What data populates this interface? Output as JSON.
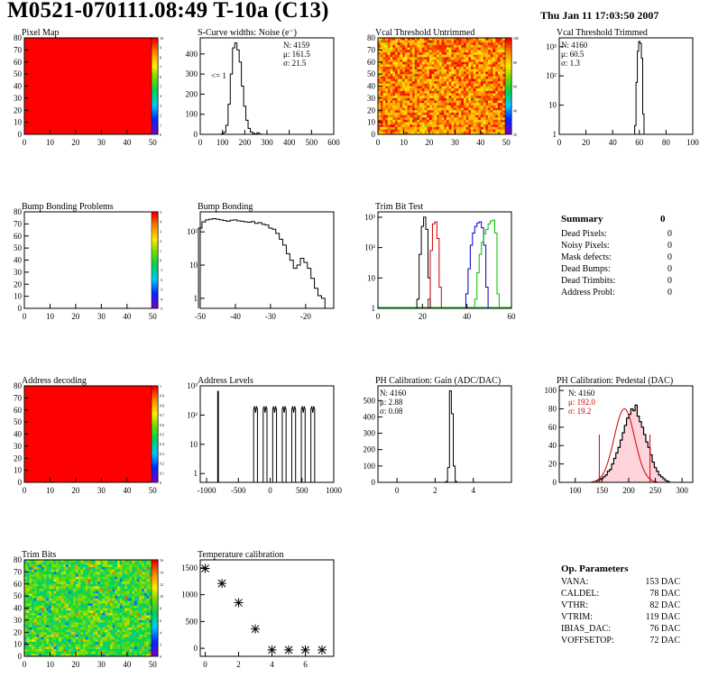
{
  "header": {
    "title": "M0521-070111.08:49 T-10a (C13)",
    "date": "Thu Jan 11 17:03:50 2007"
  },
  "panels": {
    "pixel_map": {
      "title": "Pixel Map",
      "xticks": [
        "0",
        "10",
        "20",
        "30",
        "40",
        "50"
      ],
      "yticks": [
        "0",
        "10",
        "20",
        "30",
        "40",
        "50",
        "60",
        "70",
        "80"
      ],
      "zticks": [
        "0",
        "1",
        "2",
        "3",
        "4",
        "5",
        "6",
        "7",
        "8",
        "9",
        "10"
      ]
    },
    "scurve": {
      "title": "S-Curve widths: Noise (e⁻)",
      "stats": [
        "N: 4159",
        "μ: 161.5",
        "σ: 21.5"
      ],
      "annotation": "<= 1",
      "xticks": [
        "0",
        "100",
        "200",
        "300",
        "400",
        "500",
        "600"
      ],
      "yticks": [
        "0",
        "100",
        "200",
        "300",
        "400"
      ]
    },
    "vcal_untrimmed": {
      "title": "Vcal Threshold Untrimmed",
      "xticks": [
        "0",
        "10",
        "20",
        "30",
        "40",
        "50"
      ],
      "yticks": [
        "0",
        "10",
        "20",
        "30",
        "40",
        "50",
        "60",
        "70",
        "80"
      ],
      "zticks": [
        "20",
        "40",
        "60",
        "80",
        "100"
      ]
    },
    "vcal_trimmed": {
      "title": "Vcal Threshold Trimmed",
      "stats": [
        "N: 4160",
        "μ: 60.5",
        "σ:  1.3"
      ],
      "xticks": [
        "0",
        "20",
        "40",
        "60",
        "80",
        "100"
      ],
      "yticks": [
        "1",
        "10",
        "10²",
        "10³"
      ]
    },
    "bump_problems": {
      "title": "Bump Bonding Problems",
      "xticks": [
        "0",
        "10",
        "20",
        "30",
        "40",
        "50"
      ],
      "yticks": [
        "0",
        "10",
        "20",
        "30",
        "40",
        "50",
        "60",
        "70",
        "80"
      ],
      "zticks": [
        "-5",
        "-4",
        "-3",
        "-2",
        "-1",
        "0",
        "1",
        "2",
        "3",
        "4",
        "5"
      ]
    },
    "bump_bonding": {
      "title": "Bump Bonding",
      "xticks": [
        "-50",
        "-40",
        "-30",
        "-20"
      ],
      "yticks": [
        "1",
        "10",
        "10²"
      ]
    },
    "trim_bit_test": {
      "title": "Trim Bit Test",
      "xticks": [
        "0",
        "20",
        "40",
        "60"
      ],
      "yticks": [
        "1",
        "10",
        "10²",
        "10³"
      ]
    },
    "summary": {
      "heading": "Summary",
      "heading_value": "0",
      "rows": [
        {
          "label": "Dead Pixels:",
          "value": "0"
        },
        {
          "label": "Noisy Pixels:",
          "value": "0"
        },
        {
          "label": "Mask defects:",
          "value": "0"
        },
        {
          "label": "Dead Bumps:",
          "value": "0"
        },
        {
          "label": "Dead Trimbits:",
          "value": "0"
        },
        {
          "label": "Address Probl:",
          "value": "0"
        }
      ]
    },
    "address_decoding": {
      "title": "Address decoding",
      "xticks": [
        "0",
        "10",
        "20",
        "30",
        "40",
        "50"
      ],
      "yticks": [
        "0",
        "10",
        "20",
        "30",
        "40",
        "50",
        "60",
        "70",
        "80"
      ],
      "zticks": [
        "0",
        "0.1",
        "0.2",
        "0.3",
        "0.4",
        "0.5",
        "0.6",
        "0.7",
        "0.8",
        "0.9",
        "1"
      ]
    },
    "address_levels": {
      "title": "Address Levels",
      "xticks": [
        "-1000",
        "-500",
        "0",
        "500",
        "1000"
      ],
      "yticks": [
        "1",
        "10",
        "10²",
        "10³"
      ]
    },
    "ph_gain": {
      "title": "PH Calibration: Gain (ADC/DAC)",
      "stats": [
        "N: 4160",
        "μ: 2.88",
        "σ: 0.08"
      ],
      "xticks": [
        "0",
        "2",
        "4"
      ],
      "yticks": [
        "0",
        "100",
        "200",
        "300",
        "400",
        "500"
      ]
    },
    "ph_pedestal": {
      "title": "PH Calibration: Pedestal (DAC)",
      "stats": [
        "N: 4160"
      ],
      "fit_stats": [
        "μ: 192.0",
        "σ: 19.2"
      ],
      "xticks": [
        "100",
        "150",
        "200",
        "250",
        "300"
      ],
      "yticks": [
        "0",
        "20",
        "40",
        "60",
        "80",
        "100"
      ]
    },
    "trim_bits": {
      "title": "Trim Bits",
      "xticks": [
        "0",
        "10",
        "20",
        "30",
        "40",
        "50"
      ],
      "yticks": [
        "0",
        "10",
        "20",
        "30",
        "40",
        "50",
        "60",
        "70",
        "80"
      ],
      "zticks": [
        "0",
        "2",
        "4",
        "6",
        "8",
        "10",
        "12",
        "14",
        "16"
      ]
    },
    "temperature": {
      "title": "Temperature calibration",
      "xticks": [
        "0",
        "2",
        "4",
        "6"
      ],
      "yticks": [
        "0",
        "500",
        "1000",
        "1500"
      ]
    },
    "op_params": {
      "heading": "Op. Parameters",
      "rows": [
        {
          "label": "VANA:",
          "value": "153 DAC"
        },
        {
          "label": "CALDEL:",
          "value": "78 DAC"
        },
        {
          "label": "VTHR:",
          "value": "82 DAC"
        },
        {
          "label": "VTRIM:",
          "value": "119 DAC"
        },
        {
          "label": "IBIAS_DAC:",
          "value": "76 DAC"
        },
        {
          "label": "VOFFSETOP:",
          "value": "72 DAC"
        }
      ]
    }
  },
  "chart_data": [
    {
      "type": "heatmap",
      "title": "Pixel Map",
      "x_range": [
        0,
        52
      ],
      "y_range": [
        0,
        80
      ],
      "z_range": [
        0,
        10
      ],
      "fill": "uniform maximum"
    },
    {
      "type": "bar",
      "title": "S-Curve widths: Noise (e⁻)",
      "x": [
        100,
        110,
        120,
        130,
        140,
        150,
        160,
        170,
        180,
        190,
        200,
        210,
        220,
        230,
        240,
        250,
        260,
        270
      ],
      "values": [
        2,
        10,
        45,
        150,
        300,
        430,
        455,
        420,
        360,
        240,
        140,
        70,
        30,
        12,
        5,
        2,
        8,
        1
      ],
      "xlim": [
        0,
        600
      ],
      "ylim": [
        0,
        480
      ]
    },
    {
      "type": "heatmap",
      "title": "Vcal Threshold Untrimmed",
      "x_range": [
        0,
        52
      ],
      "y_range": [
        0,
        80
      ],
      "z_range": [
        0,
        120
      ]
    },
    {
      "type": "bar",
      "title": "Vcal Threshold Trimmed",
      "x": [
        57,
        58,
        59,
        60,
        61,
        62,
        63
      ],
      "values": [
        2,
        60,
        700,
        1500,
        1300,
        400,
        5
      ],
      "xlim": [
        0,
        100
      ],
      "log_y": true,
      "ylim": [
        1,
        2000
      ]
    },
    {
      "type": "heatmap",
      "title": "Bump Bonding Problems",
      "x_range": [
        0,
        52
      ],
      "y_range": [
        0,
        80
      ],
      "z_range": [
        -5,
        5
      ],
      "fill": "empty"
    },
    {
      "type": "line",
      "title": "Bump Bonding",
      "x": [
        -50,
        -49,
        -48,
        -47,
        -46,
        -45,
        -44,
        -43,
        -42,
        -41,
        -40,
        -39,
        -38,
        -37,
        -36,
        -35,
        -34,
        -33,
        -32,
        -31,
        -30,
        -29,
        -28,
        -27,
        -26,
        -25,
        -24,
        -23,
        -22,
        -21,
        -20,
        -19,
        -18,
        -17,
        -16,
        -15
      ],
      "values": [
        130,
        200,
        230,
        240,
        250,
        240,
        230,
        220,
        210,
        225,
        230,
        215,
        210,
        200,
        195,
        205,
        180,
        190,
        170,
        160,
        130,
        120,
        90,
        60,
        40,
        22,
        14,
        8,
        10,
        16,
        12,
        8,
        4,
        2,
        1.2,
        1
      ],
      "xlim": [
        -50,
        -12
      ],
      "log_y": true,
      "ylim": [
        0.5,
        400
      ]
    },
    {
      "type": "line",
      "title": "Trim Bit Test",
      "log_y": true,
      "xlim": [
        0,
        60
      ],
      "ylim": [
        1,
        1500
      ],
      "series": [
        {
          "color": "#000000",
          "x": [
            18,
            19,
            20,
            21,
            22,
            23
          ],
          "values": [
            2,
            60,
            500,
            1000,
            400,
            10
          ]
        },
        {
          "color": "#d00000",
          "x": [
            23,
            24,
            25,
            26,
            27,
            28
          ],
          "values": [
            2,
            80,
            600,
            700,
            200,
            5
          ]
        },
        {
          "color": "#0000c0",
          "x": [
            40,
            41,
            42,
            43,
            44,
            45,
            46,
            47,
            48,
            49
          ],
          "values": [
            3,
            20,
            120,
            300,
            500,
            650,
            700,
            450,
            120,
            5
          ]
        },
        {
          "color": "#00c000",
          "x": [
            44,
            45,
            46,
            47,
            48,
            49,
            50,
            51,
            52,
            53,
            54
          ],
          "values": [
            2,
            15,
            60,
            150,
            280,
            400,
            600,
            750,
            800,
            300,
            3
          ]
        }
      ]
    },
    {
      "type": "line",
      "title": "Address Levels",
      "log_y": true,
      "xlim": [
        -1100,
        1000
      ],
      "ylim": [
        0.5,
        1000
      ],
      "peaks_x": [
        -820,
        -230,
        -80,
        70,
        220,
        370,
        520,
        670
      ],
      "peaks_y": [
        650,
        200,
        200,
        200,
        200,
        200,
        200,
        200
      ]
    },
    {
      "type": "bar",
      "title": "PH Calibration: Gain (ADC/DAC)",
      "x": [
        2.6,
        2.7,
        2.8,
        2.9,
        3.0,
        3.1
      ],
      "values": [
        5,
        90,
        560,
        420,
        100,
        5
      ],
      "xlim": [
        -1,
        6
      ],
      "ylim": [
        0,
        590
      ]
    },
    {
      "type": "bar",
      "title": "PH Calibration: Pedestal (DAC)",
      "x_start": 140,
      "bin_width": 4,
      "values": [
        2,
        3,
        4,
        6,
        8,
        12,
        14,
        20,
        26,
        32,
        38,
        46,
        54,
        62,
        70,
        74,
        80,
        78,
        84,
        72,
        66,
        60,
        52,
        44,
        38,
        30,
        22,
        16,
        12,
        8,
        6,
        4,
        2,
        1
      ],
      "xlim": [
        70,
        320
      ],
      "ylim": [
        0,
        105
      ],
      "fit": {
        "mu": 192.0,
        "sigma": 19.2
      },
      "cut_lines_x": [
        145,
        240
      ]
    },
    {
      "type": "heatmap",
      "title": "Trim Bits",
      "x_range": [
        0,
        52
      ],
      "y_range": [
        0,
        80
      ],
      "z_range": [
        0,
        16
      ]
    },
    {
      "type": "scatter",
      "title": "Temperature calibration",
      "x": [
        0,
        1,
        2,
        3,
        4,
        5,
        6,
        7
      ],
      "values": [
        1490,
        1210,
        850,
        360,
        -30,
        -30,
        -30,
        -30
      ],
      "xlim": [
        -0.3,
        7.7
      ],
      "ylim": [
        -150,
        1650
      ],
      "marker": "star"
    }
  ]
}
